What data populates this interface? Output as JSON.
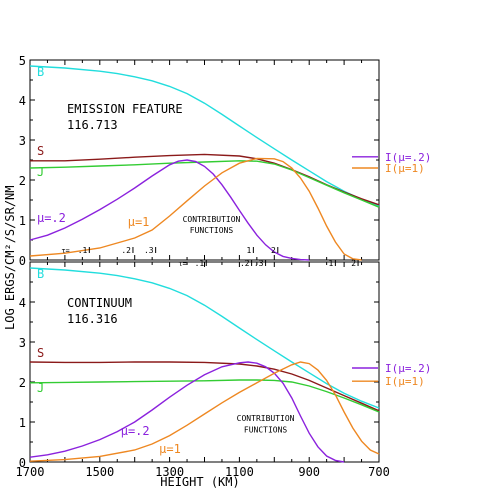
{
  "chart_data": [
    {
      "type": "line",
      "panel": "top",
      "title": "EMISSION FEATURE",
      "subtitle": "116.713",
      "xlabel": "HEIGHT (KM)",
      "ylabel": "LOG ERGS/CM²/S/SR/NM",
      "xlim": [
        1700,
        700
      ],
      "ylim": [
        0,
        5
      ],
      "yticks": [
        0,
        1,
        2,
        3,
        4,
        5
      ],
      "series": [
        {
          "name": "B",
          "color": "#22dddd",
          "x": [
            1700,
            1600,
            1500,
            1450,
            1400,
            1350,
            1300,
            1250,
            1200,
            1150,
            1100,
            1050,
            1000,
            950,
            900,
            850,
            800,
            750,
            700
          ],
          "y": [
            4.85,
            4.8,
            4.72,
            4.66,
            4.58,
            4.48,
            4.34,
            4.16,
            3.92,
            3.64,
            3.35,
            3.06,
            2.78,
            2.5,
            2.23,
            1.96,
            1.72,
            1.52,
            1.35
          ]
        },
        {
          "name": "S",
          "color": "#8b1a1a",
          "x": [
            1700,
            1600,
            1500,
            1400,
            1300,
            1200,
            1100,
            1050,
            1000,
            950,
            900,
            850,
            800,
            750,
            700
          ],
          "y": [
            2.48,
            2.48,
            2.52,
            2.57,
            2.61,
            2.64,
            2.6,
            2.53,
            2.42,
            2.26,
            2.08,
            1.88,
            1.7,
            1.53,
            1.38
          ]
        },
        {
          "name": "J",
          "color": "#33cc33",
          "x": [
            1700,
            1600,
            1500,
            1400,
            1300,
            1200,
            1100,
            1050,
            1000,
            950,
            900,
            850,
            800,
            750,
            700
          ],
          "y": [
            2.3,
            2.32,
            2.35,
            2.38,
            2.42,
            2.45,
            2.48,
            2.47,
            2.4,
            2.25,
            2.06,
            1.87,
            1.68,
            1.5,
            1.32
          ]
        },
        {
          "name": "μ=.2",
          "color": "#8b22dd",
          "x": [
            1700,
            1650,
            1600,
            1550,
            1500,
            1450,
            1400,
            1350,
            1300,
            1275,
            1250,
            1225,
            1200,
            1175,
            1150,
            1125,
            1100,
            1075,
            1050,
            1025,
            1000,
            975,
            950,
            925,
            900
          ],
          "y": [
            0.5,
            0.62,
            0.8,
            1.02,
            1.26,
            1.52,
            1.8,
            2.1,
            2.38,
            2.47,
            2.5,
            2.46,
            2.34,
            2.15,
            1.88,
            1.57,
            1.24,
            0.92,
            0.62,
            0.38,
            0.2,
            0.09,
            0.04,
            0.01,
            0
          ]
        },
        {
          "name": "μ=1",
          "color": "#ee8822",
          "x": [
            1700,
            1600,
            1500,
            1400,
            1350,
            1300,
            1250,
            1200,
            1150,
            1100,
            1050,
            1000,
            975,
            950,
            925,
            900,
            875,
            850,
            825,
            800,
            775,
            750
          ],
          "y": [
            0.1,
            0.17,
            0.3,
            0.55,
            0.75,
            1.1,
            1.48,
            1.85,
            2.18,
            2.42,
            2.54,
            2.53,
            2.46,
            2.3,
            2.05,
            1.72,
            1.3,
            0.85,
            0.45,
            0.15,
            0.03,
            0
          ]
        }
      ],
      "annotations": [
        {
          "text": "B",
          "x": 1680,
          "y": 4.6,
          "color": "#22dddd"
        },
        {
          "text": "S",
          "x": 1680,
          "y": 2.62,
          "color": "#8b1a1a"
        },
        {
          "text": "J",
          "x": 1680,
          "y": 2.1,
          "color": "#33cc33"
        },
        {
          "text": "μ=.2",
          "x": 1680,
          "y": 0.95,
          "color": "#8b22dd"
        },
        {
          "text": "μ=1",
          "x": 1420,
          "y": 0.85,
          "color": "#ee8822"
        },
        {
          "text": "CONTRIBUTION",
          "x": 1180,
          "y": 0.95,
          "color": "#000000"
        },
        {
          "text": "FUNCTIONS",
          "x": 1180,
          "y": 0.67,
          "color": "#000000"
        }
      ],
      "side_labels": [
        {
          "text": "I(μ=.2)",
          "color": "#8b22dd",
          "y": 2.58
        },
        {
          "text": "I(μ=1)",
          "color": "#ee8822",
          "y": 2.3
        }
      ],
      "tau_scales": [
        {
          "label": "τ=",
          "ticks": [
            {
              "x": 1530,
              "text": ".1"
            },
            {
              "x": 1405,
              "text": ".2"
            },
            {
              "x": 1340,
              "text": ".3"
            },
            {
              "x": 1060,
              "text": "1"
            },
            {
              "x": 990,
              "text": "2"
            }
          ]
        },
        {
          "label": "τ=",
          "ticks": [
            {
              "x": 1195,
              "text": ".1"
            },
            {
              "x": 1065,
              "text": ".2"
            },
            {
              "x": 1025,
              "text": ".3"
            },
            {
              "x": 825,
              "text": "1"
            },
            {
              "x": 760,
              "text": "2"
            }
          ]
        }
      ]
    },
    {
      "type": "line",
      "panel": "bottom",
      "title": "CONTINUUM",
      "subtitle": "116.316",
      "xlabel": "HEIGHT (KM)",
      "ylabel": "LOG ERGS/CM²/S/SR/NM",
      "xlim": [
        1700,
        700
      ],
      "ylim": [
        0,
        5
      ],
      "xticks": [
        1700,
        1500,
        1300,
        1100,
        900,
        700
      ],
      "yticks": [
        0,
        1,
        2,
        3,
        4
      ],
      "series": [
        {
          "name": "B",
          "color": "#22dddd",
          "x": [
            1700,
            1600,
            1500,
            1450,
            1400,
            1350,
            1300,
            1250,
            1200,
            1150,
            1100,
            1050,
            1000,
            950,
            900,
            850,
            800,
            750,
            700
          ],
          "y": [
            4.85,
            4.8,
            4.72,
            4.66,
            4.58,
            4.48,
            4.34,
            4.16,
            3.92,
            3.64,
            3.35,
            3.06,
            2.78,
            2.5,
            2.23,
            1.96,
            1.72,
            1.52,
            1.35
          ]
        },
        {
          "name": "S",
          "color": "#8b1a1a",
          "x": [
            1700,
            1600,
            1500,
            1400,
            1300,
            1200,
            1100,
            1050,
            1000,
            950,
            900,
            850,
            800,
            750,
            700
          ],
          "y": [
            2.5,
            2.49,
            2.49,
            2.5,
            2.5,
            2.49,
            2.45,
            2.4,
            2.32,
            2.2,
            2.04,
            1.85,
            1.66,
            1.47,
            1.28
          ]
        },
        {
          "name": "J",
          "color": "#33cc33",
          "x": [
            1700,
            1600,
            1500,
            1400,
            1300,
            1200,
            1100,
            1050,
            1000,
            950,
            900,
            850,
            800,
            750,
            700
          ],
          "y": [
            1.98,
            1.99,
            2.0,
            2.01,
            2.02,
            2.03,
            2.05,
            2.05,
            2.04,
            2.0,
            1.9,
            1.76,
            1.6,
            1.43,
            1.25
          ]
        },
        {
          "name": "μ=.2",
          "color": "#8b22dd",
          "x": [
            1700,
            1650,
            1600,
            1550,
            1500,
            1450,
            1400,
            1350,
            1300,
            1250,
            1200,
            1150,
            1100,
            1075,
            1050,
            1025,
            1000,
            975,
            950,
            925,
            900,
            875,
            850,
            825,
            800
          ],
          "y": [
            0.12,
            0.18,
            0.27,
            0.4,
            0.56,
            0.76,
            1.0,
            1.3,
            1.62,
            1.92,
            2.18,
            2.38,
            2.48,
            2.5,
            2.47,
            2.38,
            2.22,
            1.97,
            1.6,
            1.15,
            0.72,
            0.38,
            0.15,
            0.04,
            0
          ]
        },
        {
          "name": "μ=1",
          "color": "#ee8822",
          "x": [
            1700,
            1600,
            1500,
            1400,
            1350,
            1300,
            1250,
            1200,
            1150,
            1100,
            1050,
            1000,
            950,
            925,
            900,
            875,
            850,
            825,
            800,
            775,
            750,
            725,
            700
          ],
          "y": [
            0.02,
            0.06,
            0.14,
            0.3,
            0.45,
            0.66,
            0.92,
            1.2,
            1.48,
            1.74,
            1.98,
            2.22,
            2.43,
            2.5,
            2.46,
            2.3,
            2.04,
            1.68,
            1.25,
            0.85,
            0.52,
            0.3,
            0.2
          ]
        }
      ],
      "annotations": [
        {
          "text": "B",
          "x": 1680,
          "y": 4.6,
          "color": "#22dddd"
        },
        {
          "text": "S",
          "x": 1680,
          "y": 2.62,
          "color": "#8b1a1a"
        },
        {
          "text": "J",
          "x": 1680,
          "y": 1.75,
          "color": "#33cc33"
        },
        {
          "text": "μ=.2",
          "x": 1440,
          "y": 0.68,
          "color": "#8b22dd"
        },
        {
          "text": "μ=1",
          "x": 1330,
          "y": 0.22,
          "color": "#ee8822"
        },
        {
          "text": "CONTRIBUTION",
          "x": 1025,
          "y": 1.02,
          "color": "#000000"
        },
        {
          "text": "FUNCTIONS",
          "x": 1025,
          "y": 0.74,
          "color": "#000000"
        }
      ],
      "side_labels": [
        {
          "text": "I(μ=.2)",
          "color": "#8b22dd",
          "y": 2.35
        },
        {
          "text": "I(μ=1)",
          "color": "#ee8822",
          "y": 2.02
        }
      ]
    }
  ]
}
